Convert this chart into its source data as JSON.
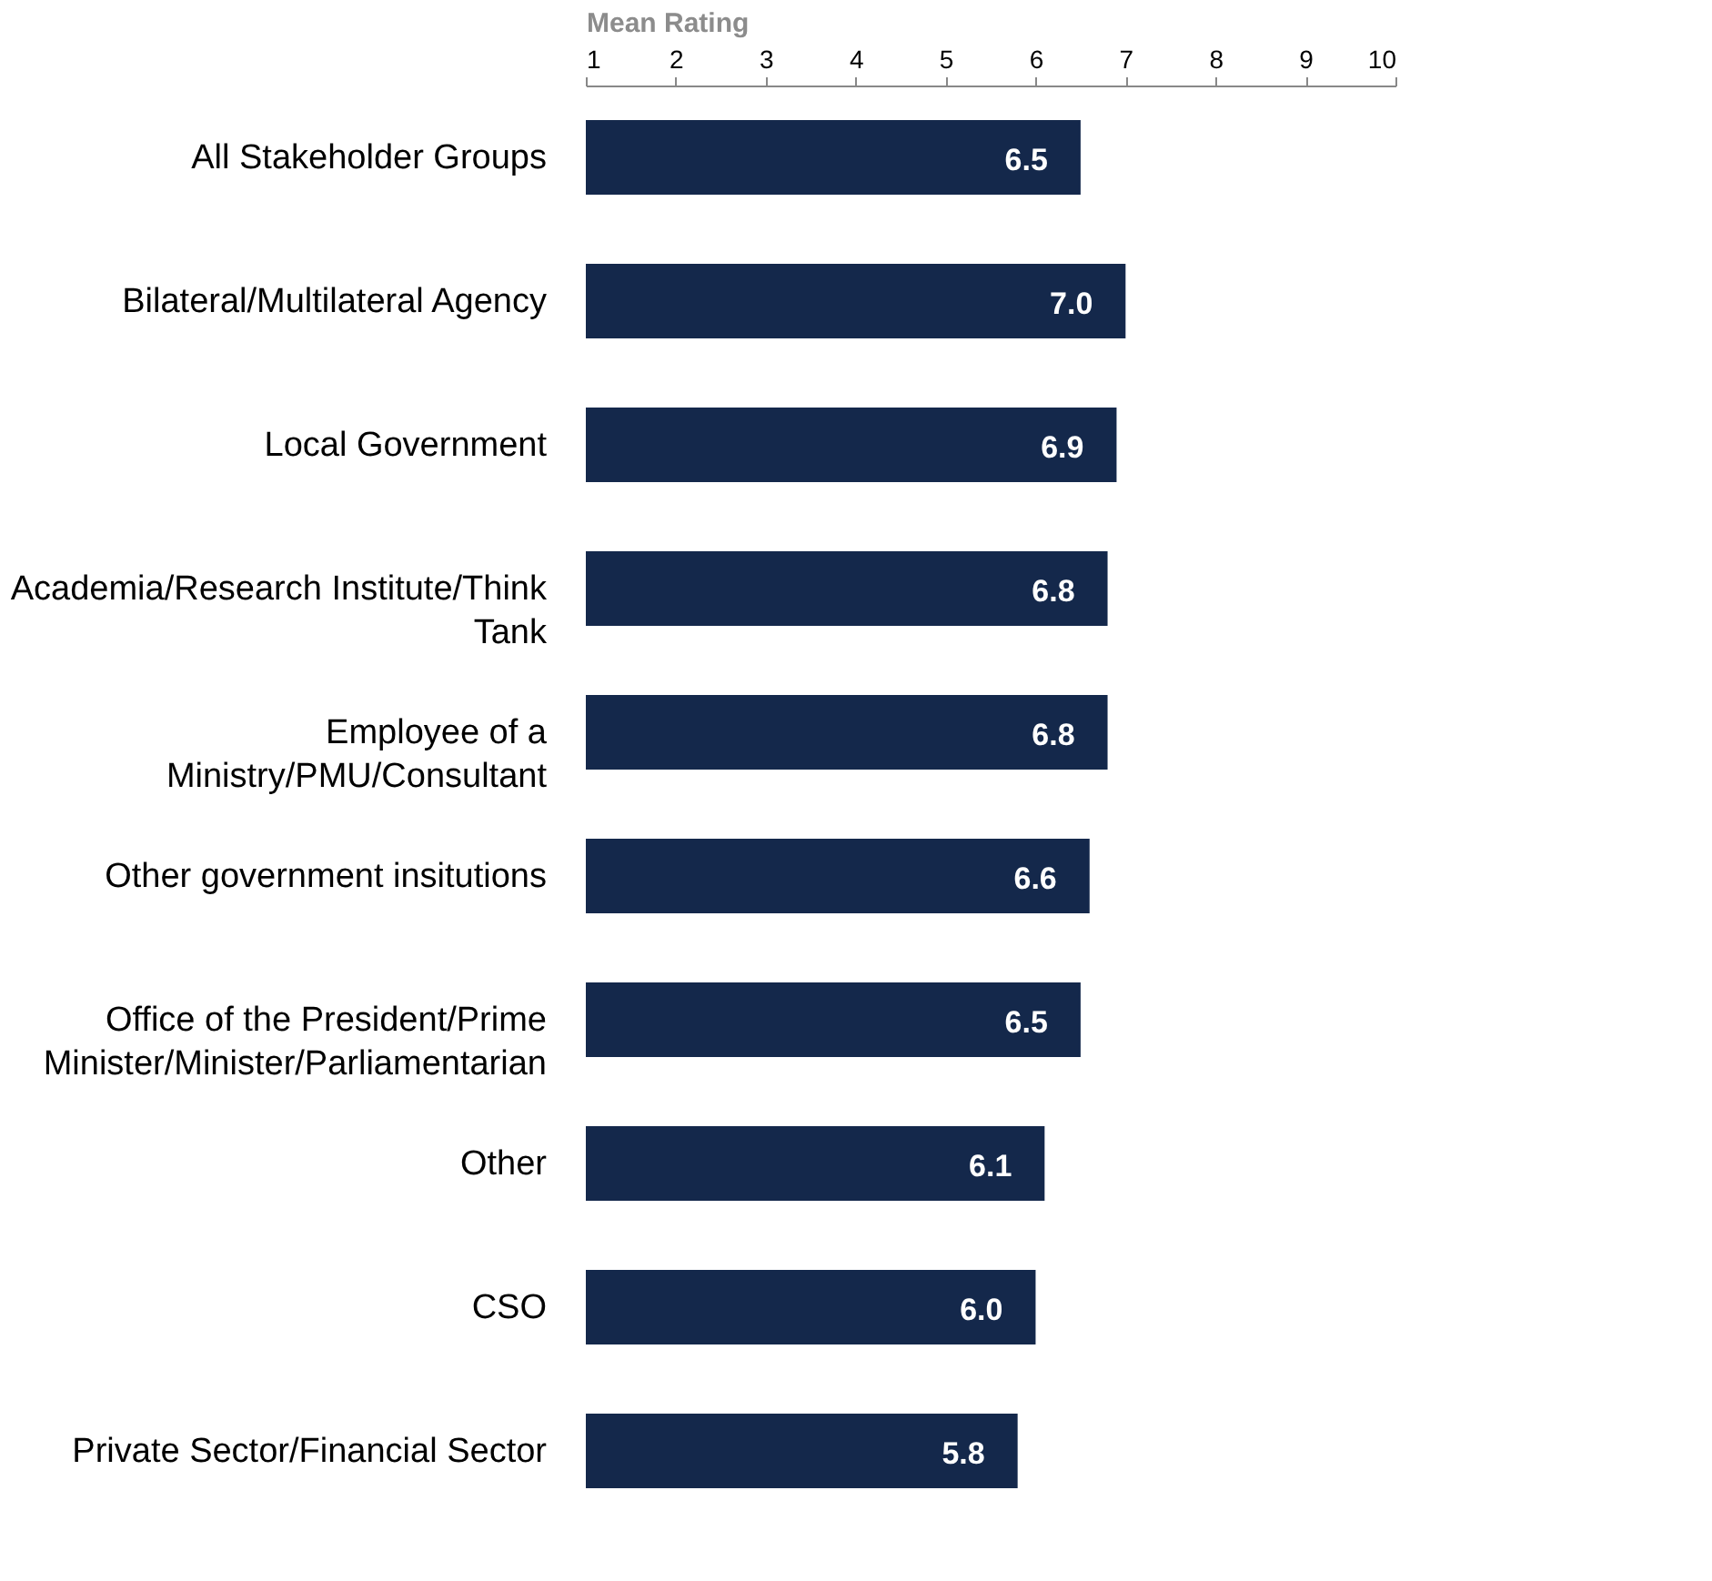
{
  "chart_data": {
    "type": "bar",
    "orientation": "horizontal",
    "xlabel": "Mean Rating",
    "categories": [
      "All Stakeholder Groups",
      "Bilateral/Multilateral Agency",
      "Local Government",
      "Academia/Research Institute/Think Tank",
      "Employee of a Ministry/PMU/Consultant",
      "Other government insitutions",
      "Office of the President/Prime Minister/Minister/Parliamentarian",
      "Other",
      "CSO",
      "Private Sector/Financial Sector"
    ],
    "values": [
      6.5,
      7.0,
      6.9,
      6.8,
      6.8,
      6.6,
      6.5,
      6.1,
      6.0,
      5.8
    ],
    "color": "#14284b",
    "xlim": [
      1,
      10
    ],
    "xticks": [
      1,
      2,
      3,
      4,
      5,
      6,
      7,
      8,
      9,
      10
    ],
    "value_labels": [
      "6.5",
      "7.0",
      "6.9",
      "6.8",
      "6.8",
      "6.6",
      "6.5",
      "6.1",
      "6.0",
      "5.8"
    ],
    "grid": false
  }
}
